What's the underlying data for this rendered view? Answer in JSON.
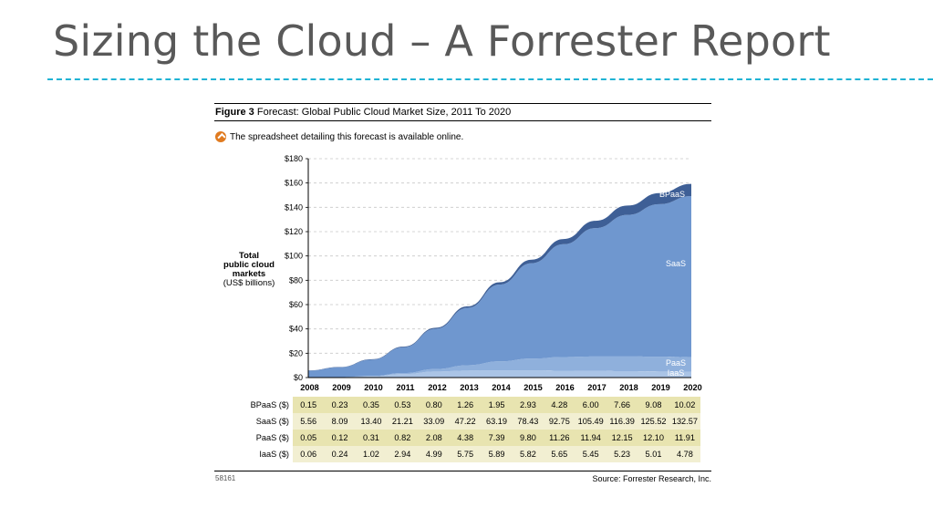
{
  "slide_title": "Sizing the Cloud – A Forrester Report",
  "figure": {
    "number": "Figure 3",
    "caption": "Forecast: Global Public Cloud Market Size, 2011 To 2020",
    "note": "The spreadsheet detailing this forecast is available online.",
    "ylabel_line1": "Total",
    "ylabel_line2": "public cloud",
    "ylabel_line3": "markets",
    "ylabel_line4": "(US$ billions)",
    "figure_id": "58161",
    "source": "Source: Forrester Research, Inc."
  },
  "chart_data": {
    "type": "area",
    "stacked": true,
    "x": [
      "2008",
      "2009",
      "2010",
      "2011",
      "2012",
      "2013",
      "2014",
      "2015",
      "2016",
      "2017",
      "2018",
      "2019",
      "2020"
    ],
    "ylim": [
      0,
      180
    ],
    "yticks": [
      "$0",
      "$20",
      "$40",
      "$60",
      "$80",
      "$100",
      "$120",
      "$140",
      "$160",
      "$180"
    ],
    "grid": "horizontal dashed",
    "series": [
      {
        "name": "IaaS",
        "row_label": "IaaS ($)",
        "color": "#aac4e6",
        "values": [
          0.06,
          0.24,
          1.02,
          2.94,
          4.99,
          5.75,
          5.89,
          5.82,
          5.65,
          5.45,
          5.23,
          5.01,
          4.78
        ],
        "labels": [
          "0.06",
          "0.24",
          "1.02",
          "2.94",
          "4.99",
          "5.75",
          "5.89",
          "5.82",
          "5.65",
          "5.45",
          "5.23",
          "5.01",
          "4.78"
        ]
      },
      {
        "name": "PaaS",
        "row_label": "PaaS ($)",
        "color": "#8fb0dc",
        "values": [
          0.05,
          0.12,
          0.31,
          0.82,
          2.08,
          4.38,
          7.39,
          9.8,
          11.26,
          11.94,
          12.15,
          12.1,
          11.91
        ],
        "labels": [
          "0.05",
          "0.12",
          "0.31",
          "0.82",
          "2.08",
          "4.38",
          "7.39",
          "9.80",
          "11.26",
          "11.94",
          "12.15",
          "12.10",
          "11.91"
        ]
      },
      {
        "name": "SaaS",
        "row_label": "SaaS ($)",
        "color": "#6f97cf",
        "values": [
          5.56,
          8.09,
          13.4,
          21.21,
          33.09,
          47.22,
          63.19,
          78.43,
          92.75,
          105.49,
          116.39,
          125.52,
          132.57
        ],
        "labels": [
          "5.56",
          "8.09",
          "13.40",
          "21.21",
          "33.09",
          "47.22",
          "63.19",
          "78.43",
          "92.75",
          "105.49",
          "116.39",
          "125.52",
          "132.57"
        ]
      },
      {
        "name": "BPaaS",
        "row_label": "BPaaS ($)",
        "color": "#3e5f96",
        "values": [
          0.15,
          0.23,
          0.35,
          0.53,
          0.8,
          1.26,
          1.95,
          2.93,
          4.28,
          6.0,
          7.66,
          9.08,
          10.02
        ],
        "labels": [
          "0.15",
          "0.23",
          "0.35",
          "0.53",
          "0.80",
          "1.26",
          "1.95",
          "2.93",
          "4.28",
          "6.00",
          "7.66",
          "9.08",
          "10.02"
        ]
      }
    ],
    "table_row_order": [
      "BPaaS",
      "SaaS",
      "PaaS",
      "IaaS"
    ]
  }
}
